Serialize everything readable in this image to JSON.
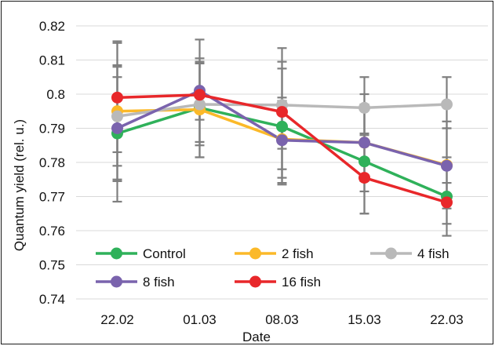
{
  "chart_data": {
    "type": "line",
    "title": "",
    "xlabel": "Date",
    "ylabel": "Quantum yield (rel. u.)",
    "categories": [
      "22.02",
      "01.03",
      "08.03",
      "15.03",
      "22.03"
    ],
    "ylim": [
      0.74,
      0.82
    ],
    "yticks": [
      "0.74",
      "0.75",
      "0.76",
      "0.77",
      "0.78",
      "0.79",
      "0.8",
      "0.81",
      "0.82"
    ],
    "grid": "horizontal",
    "legend_position": "bottom-inside",
    "error_bar_color": "#7f7f7f",
    "series": [
      {
        "name": "Control",
        "color": "#2fb15a",
        "values": [
          0.7885,
          0.796,
          0.7905,
          0.7803,
          0.77
        ],
        "err_low": [
          0.7685,
          0.7815,
          0.7735,
          0.765,
          0.7585
        ],
        "err_high": [
          0.8085,
          0.8105,
          0.8075,
          0.7955,
          0.7815
        ]
      },
      {
        "name": "2 fish",
        "color": "#fbb929",
        "values": [
          0.795,
          0.7955,
          0.7868,
          0.7858,
          0.7792
        ],
        "err_low": [
          0.7745,
          0.7815,
          0.7755,
          0.7715,
          0.7665
        ],
        "err_high": [
          0.8155,
          0.8095,
          0.798,
          0.8,
          0.792
        ]
      },
      {
        "name": "4 fish",
        "color": "#b9b9b9",
        "values": [
          0.7935,
          0.797,
          0.7968,
          0.796,
          0.797
        ],
        "err_low": [
          0.779,
          0.785,
          0.784,
          0.788,
          0.79
        ],
        "err_high": [
          0.808,
          0.809,
          0.8095,
          0.805,
          0.805
        ]
      },
      {
        "name": "8 fish",
        "color": "#7a63ad",
        "values": [
          0.79,
          0.801,
          0.7865,
          0.7858,
          0.779
        ],
        "err_low": [
          0.775,
          0.7925,
          0.774,
          0.7745,
          0.769
        ],
        "err_high": [
          0.805,
          0.809,
          0.799,
          0.797,
          0.79
        ]
      },
      {
        "name": "16 fish",
        "color": "#e8272a",
        "values": [
          0.799,
          0.7998,
          0.7948,
          0.7755,
          0.7683
        ],
        "err_low": [
          0.783,
          0.786,
          0.778,
          0.765,
          0.762
        ],
        "err_high": [
          0.815,
          0.816,
          0.8135,
          0.7885,
          0.774
        ]
      }
    ]
  }
}
